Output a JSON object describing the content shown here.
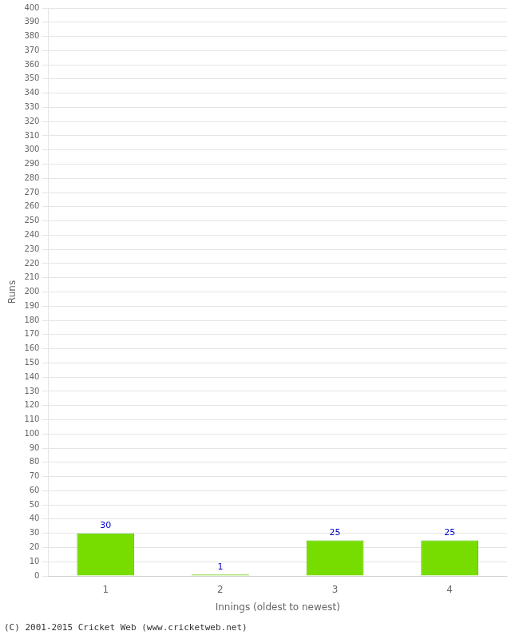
{
  "chart_data": {
    "type": "bar",
    "categories": [
      "1",
      "2",
      "3",
      "4"
    ],
    "values": [
      30,
      1,
      25,
      25
    ],
    "color": "#77dd00",
    "xlabel": "Innings (oldest to newest)",
    "ylabel": "Runs",
    "ylim": [
      0,
      400
    ],
    "yticks": [
      0,
      10,
      20,
      30,
      40,
      50,
      60,
      70,
      80,
      90,
      100,
      110,
      120,
      130,
      140,
      150,
      160,
      170,
      180,
      190,
      200,
      210,
      220,
      230,
      240,
      250,
      260,
      270,
      280,
      290,
      300,
      310,
      320,
      330,
      340,
      350,
      360,
      370,
      380,
      390,
      400
    ],
    "grid": true,
    "data_labels": true,
    "annotations": [
      "(C) 2001-2015 Cricket Web (www.cricketweb.net)"
    ]
  }
}
